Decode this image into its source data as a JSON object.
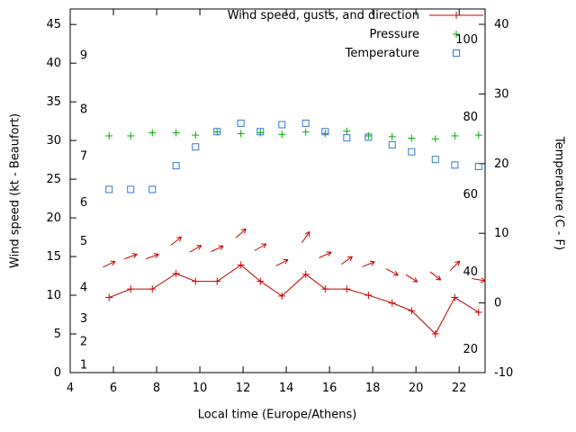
{
  "chart_data": {
    "type": "line",
    "xlabel": "Local time (Europe/Athens)",
    "ylabel_left": "Wind speed (kt - Beaufort)",
    "ylabel_right": "Temperature (C - F)",
    "x_range": [
      4,
      23.2
    ],
    "x_ticks": [
      4,
      6,
      8,
      10,
      12,
      14,
      16,
      18,
      20,
      22
    ],
    "left_axis": {
      "unit": "kt",
      "range": [
        0,
        47
      ],
      "ticks": [
        0,
        5,
        10,
        15,
        20,
        25,
        30,
        35,
        40,
        45
      ],
      "beaufort_labels": [
        {
          "label": "1",
          "kt": 1
        },
        {
          "label": "2",
          "kt": 4
        },
        {
          "label": "3",
          "kt": 7
        },
        {
          "label": "4",
          "kt": 11
        },
        {
          "label": "5",
          "kt": 17
        },
        {
          "label": "6",
          "kt": 22
        },
        {
          "label": "7",
          "kt": 28
        },
        {
          "label": "8",
          "kt": 34
        },
        {
          "label": "9",
          "kt": 41
        }
      ]
    },
    "right_axis": {
      "unit": "C",
      "range_c": [
        -10,
        42.2
      ],
      "ticks_c": [
        -10,
        0,
        10,
        20,
        30,
        40
      ],
      "fahrenheit_labels": [
        {
          "label": "20",
          "f": 20
        },
        {
          "label": "40",
          "f": 40
        },
        {
          "label": "60",
          "f": 60
        },
        {
          "label": "80",
          "f": 80
        },
        {
          "label": "100",
          "f": 100
        }
      ]
    },
    "legend_position": "top-right-inside",
    "series": [
      {
        "name": "Wind speed, gusts, and direction",
        "style": "line-with-markers-and-arrows",
        "marker": "plus",
        "color": "#cc0000",
        "x": [
          5.8,
          6.8,
          7.8,
          8.9,
          9.8,
          10.8,
          11.9,
          12.8,
          13.8,
          14.9,
          15.8,
          16.8,
          17.8,
          18.9,
          19.8,
          20.9,
          21.8,
          22.9
        ],
        "wind_kt": [
          9.7,
          10.8,
          10.8,
          12.8,
          11.8,
          11.8,
          13.9,
          11.8,
          9.9,
          12.7,
          10.8,
          10.8,
          10.0,
          9.0,
          8.0,
          5.0,
          9.7,
          7.8
        ],
        "gust_kt": [
          14.0,
          15.0,
          15.0,
          17.0,
          16.0,
          16.0,
          18.0,
          16.2,
          14.2,
          17.5,
          15.2,
          14.5,
          14.0,
          13.0,
          12.2,
          12.5,
          13.8,
          12.0
        ],
        "gust_direction_deg": [
          25,
          20,
          20,
          38,
          30,
          25,
          42,
          30,
          28,
          55,
          25,
          35,
          22,
          -28,
          -32,
          -38,
          45,
          -10
        ]
      },
      {
        "name": "Pressure",
        "style": "points",
        "marker": "plus",
        "color": "#00aa00",
        "x": [
          5.8,
          6.8,
          7.8,
          8.9,
          9.8,
          10.8,
          11.9,
          12.8,
          13.8,
          14.9,
          15.8,
          16.8,
          17.8,
          18.9,
          19.8,
          20.9,
          21.8,
          22.9
        ],
        "value_left_axis": [
          30.6,
          30.6,
          31.0,
          31.0,
          30.7,
          31.1,
          30.9,
          31.0,
          30.8,
          31.1,
          30.9,
          31.2,
          30.6,
          30.5,
          30.3,
          30.2,
          30.6,
          30.7
        ]
      },
      {
        "name": "Temperature",
        "style": "points",
        "marker": "open-square",
        "color": "#3377cc",
        "x": [
          5.8,
          6.8,
          7.8,
          8.9,
          9.8,
          10.8,
          11.9,
          12.8,
          13.8,
          14.9,
          15.8,
          16.8,
          17.8,
          18.9,
          19.8,
          20.9,
          21.8,
          22.9
        ],
        "temperature_c": [
          16.3,
          16.3,
          16.3,
          19.7,
          22.4,
          24.6,
          25.8,
          24.6,
          25.6,
          25.8,
          24.6,
          23.7,
          23.8,
          22.7,
          21.7,
          20.6,
          19.8,
          19.6
        ]
      }
    ]
  }
}
